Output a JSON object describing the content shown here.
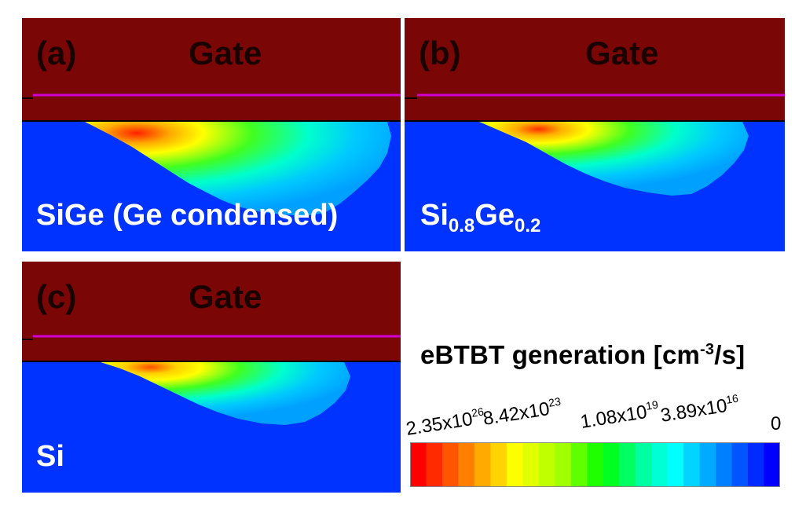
{
  "panels": [
    {
      "letter": "(a)",
      "gate": "Gate",
      "material": "SiGe (Ge condensed)"
    },
    {
      "letter": "(b)",
      "gate": "Gate",
      "material_base1": "Si",
      "material_sub1": "0.8",
      "material_base2": "Ge",
      "material_sub2": "0.2"
    },
    {
      "letter": "(c)",
      "gate": "Gate",
      "material": "Si"
    }
  ],
  "legend": {
    "title_main": "eBTBT generation [cm",
    "title_sup": "-3",
    "title_end": "/s]",
    "ticks": [
      {
        "mantissa": "2.35x10",
        "exponent": "26"
      },
      {
        "mantissa": "8.42x10",
        "exponent": "23"
      },
      {
        "mantissa": "1.08x10",
        "exponent": "19"
      },
      {
        "mantissa": "3.89x10",
        "exponent": "16"
      },
      {
        "mantissa": "0",
        "exponent": ""
      }
    ],
    "colors": [
      "#ff0000",
      "#ff2a00",
      "#ff5500",
      "#ff8000",
      "#ffaa00",
      "#ffd400",
      "#ffff00",
      "#e0ff00",
      "#c0ff00",
      "#a0ff00",
      "#60ff00",
      "#20ff00",
      "#00ff20",
      "#00ff60",
      "#00ffa0",
      "#00ffd4",
      "#00ffff",
      "#00d4ff",
      "#00aaff",
      "#0080ff",
      "#0055ff",
      "#002aff",
      "#0000ff"
    ]
  },
  "colors": {
    "gate": "#7a0606",
    "oxide_line": "#d000d0",
    "channel": "#0033ff"
  }
}
